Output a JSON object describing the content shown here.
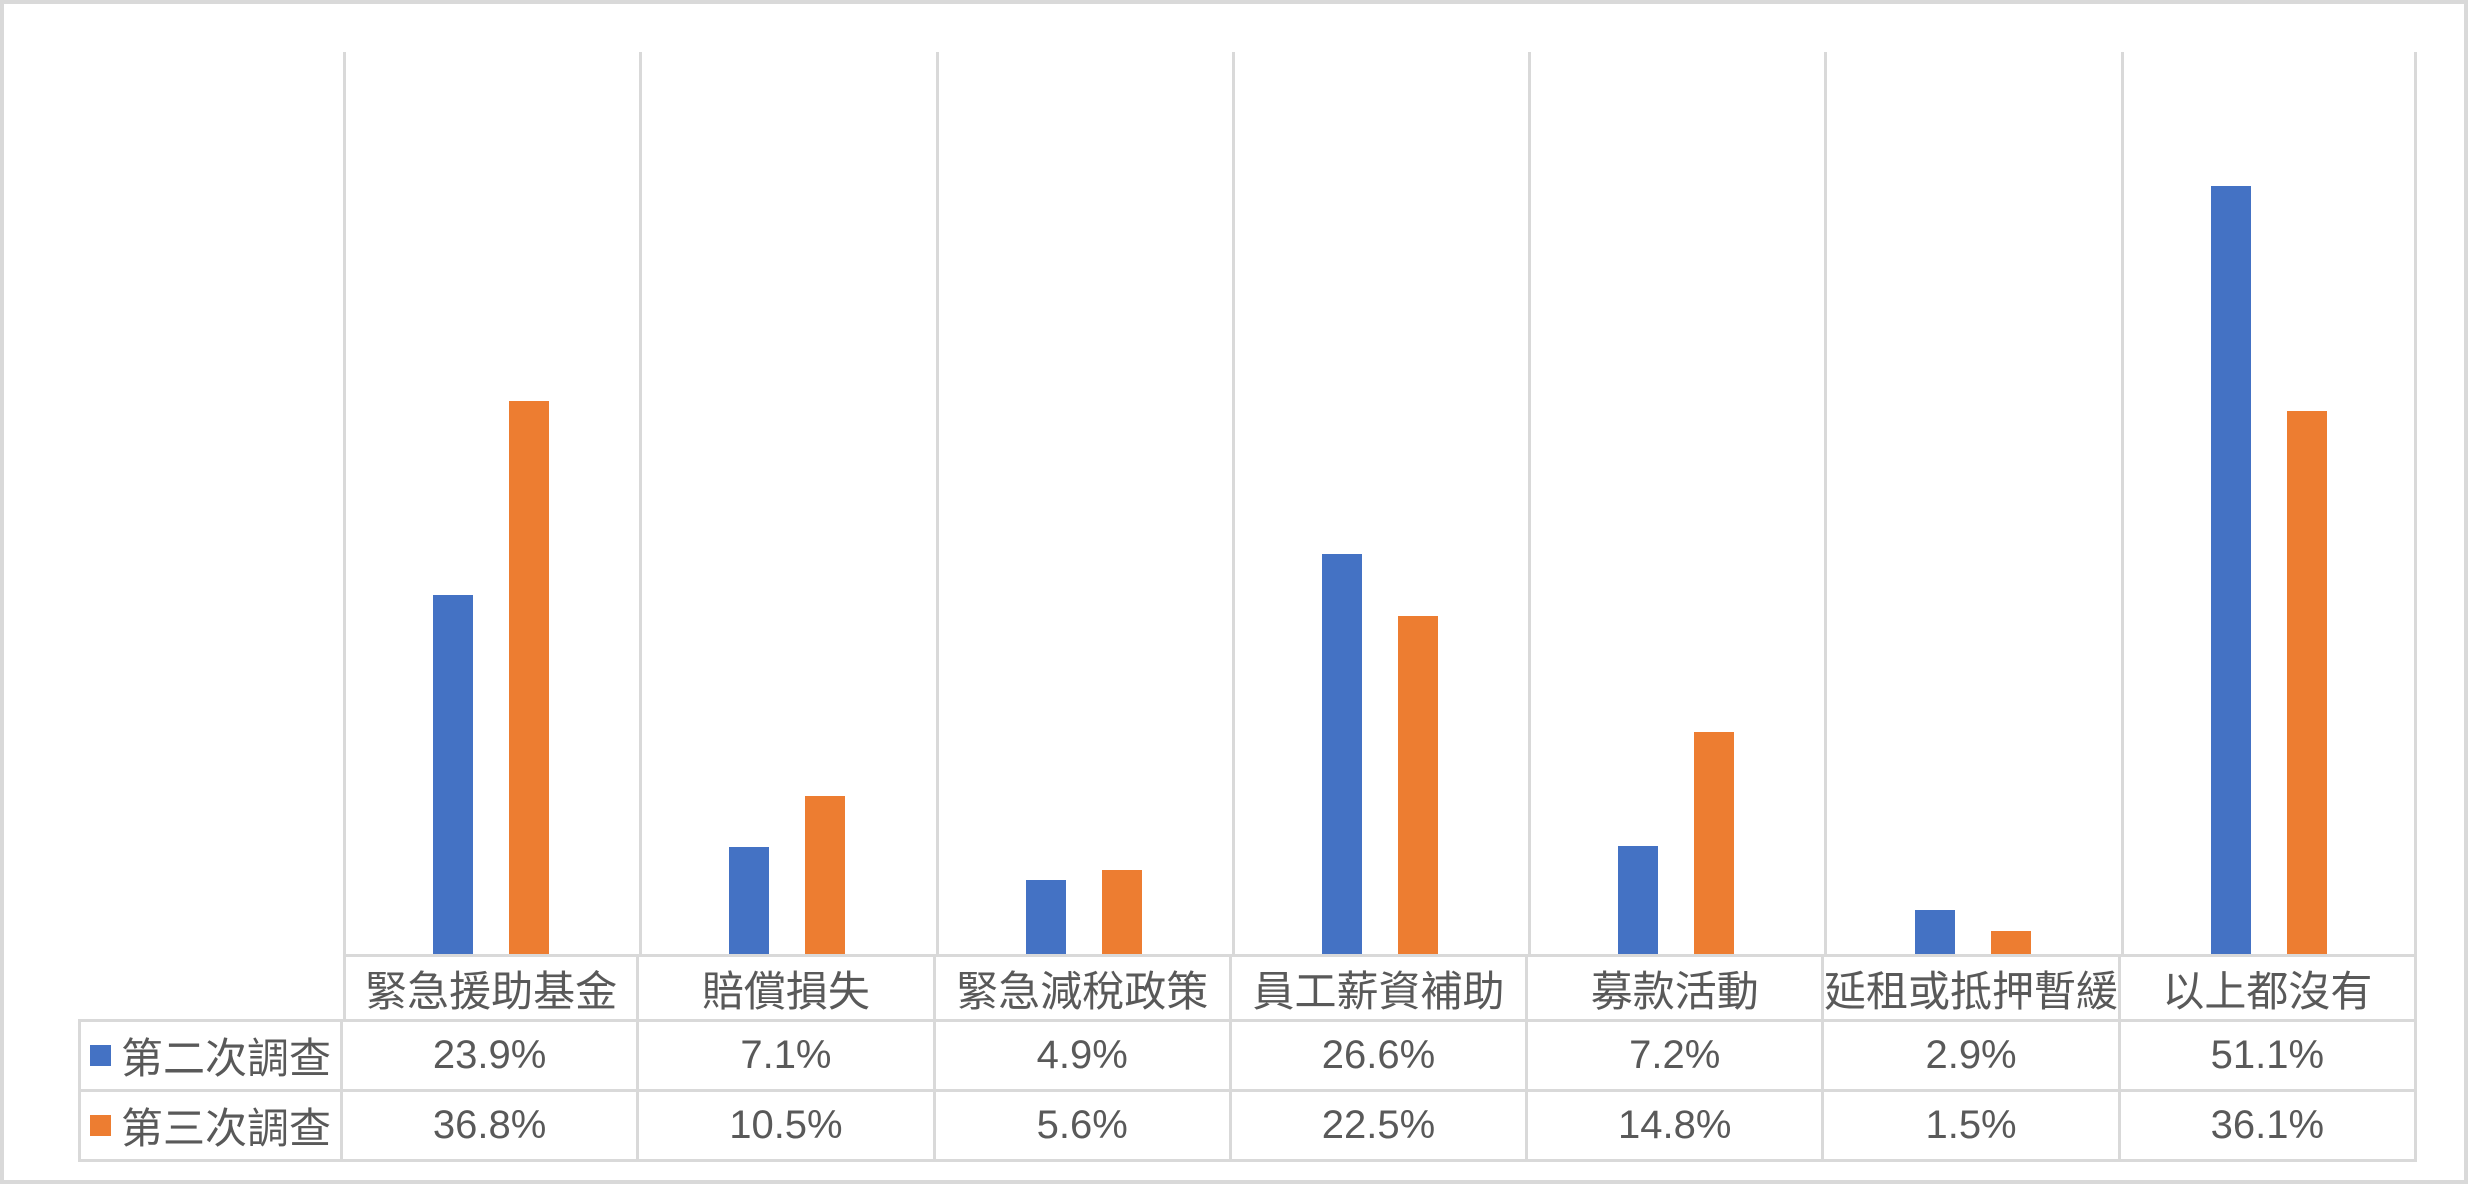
{
  "frame": {
    "background": "#FFFFFF",
    "border_color": "#D9D9D9"
  },
  "colors": {
    "series1": "#4472C4",
    "series2": "#ED7D31",
    "grid": "#D9D9D9",
    "text": "#595959"
  },
  "chart_data": {
    "type": "bar",
    "title": "",
    "xlabel": "",
    "ylabel": "",
    "categories": [
      "緊急援助基金",
      "賠償損失",
      "緊急減稅政策",
      "員工薪資補助",
      "募款活動",
      "延租或抵押暫緩",
      "以上都沒有"
    ],
    "series": [
      {
        "name": "第二次調查",
        "color": "#4472C4",
        "values": [
          23.9,
          7.1,
          4.9,
          26.6,
          7.2,
          2.9,
          51.1
        ],
        "labels": [
          "23.9%",
          "7.1%",
          "4.9%",
          "26.6%",
          "7.2%",
          "2.9%",
          "51.1%"
        ]
      },
      {
        "name": "第三次調查",
        "color": "#ED7D31",
        "values": [
          36.8,
          10.5,
          5.6,
          22.5,
          14.8,
          1.5,
          36.1
        ],
        "labels": [
          "36.8%",
          "10.5%",
          "5.6%",
          "22.5%",
          "14.8%",
          "1.5%",
          "36.1%"
        ]
      }
    ],
    "ylim": [
      0,
      60
    ],
    "y_unit": "percent",
    "grid": "vertical category separators only",
    "value_axis_visible": false,
    "legend_position": "data-table-left",
    "data_table_shown": true
  }
}
